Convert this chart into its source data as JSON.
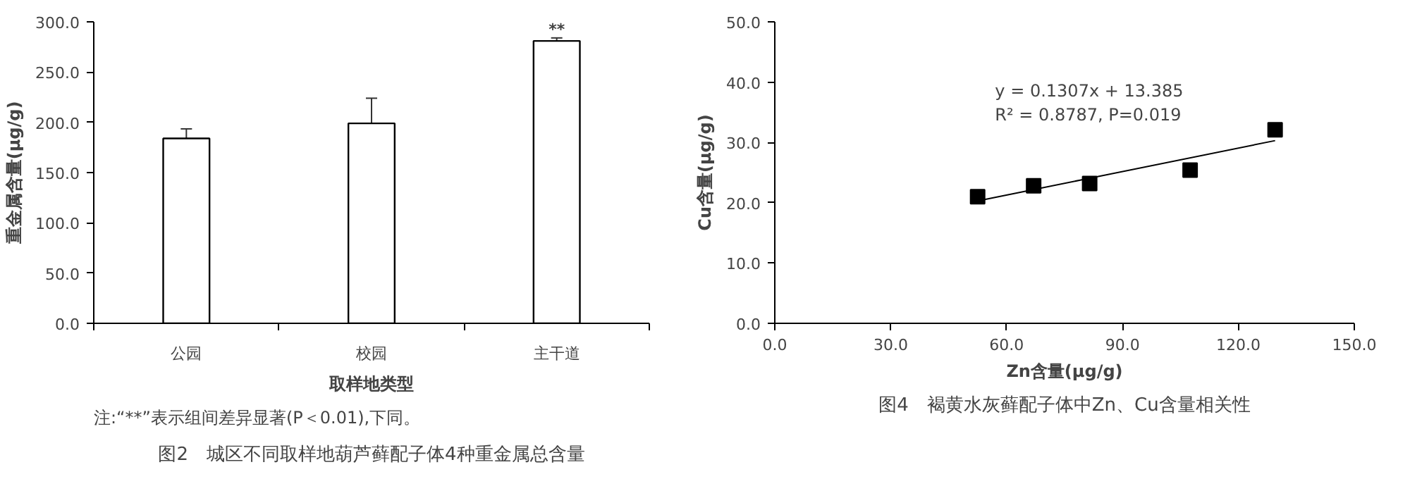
{
  "chart_data": [
    {
      "type": "bar",
      "title": "图2　城区不同取样地葫芦藓配子体4种重金属总含量",
      "xlabel": "取样地类型",
      "ylabel": "重金属含量(μg/g)",
      "categories": [
        "公园",
        "校园",
        "主干道"
      ],
      "series": [
        {
          "color": "#ffffff",
          "values": [
            184,
            199,
            281
          ],
          "errors": [
            9.5,
            25.0,
            3.0
          ]
        }
      ],
      "ylim": [
        0,
        300
      ],
      "yticks": [
        {
          "value": 0,
          "label": "0.0"
        },
        {
          "value": 50,
          "label": "50.0"
        },
        {
          "value": 100,
          "label": "100.0"
        },
        {
          "value": 150,
          "label": "150.0"
        },
        {
          "value": 200,
          "label": "200.0"
        },
        {
          "value": 250,
          "label": "250.0"
        },
        {
          "value": 300,
          "label": "300.0"
        }
      ],
      "annotations": [
        {
          "text": "**",
          "x": "主干道",
          "y": 283
        },
        "注:“**”表示组间差异显著(P＜0.01),下同。"
      ],
      "grid": false
    },
    {
      "type": "scatter",
      "title": "图4　褐黄水灰藓配子体中Zn、Cu含量相关性",
      "xlabel": "Zn含量(μg/g)",
      "ylabel": "Cu含量(μg/g)",
      "series": [
        {
          "type": "scatter",
          "marker": "square",
          "color": "#000000",
          "x": [
            52.5,
            67.0,
            81.5,
            107.5,
            129.5
          ],
          "values": [
            21.0,
            22.8,
            23.2,
            25.4,
            32.1
          ]
        },
        {
          "type": "line",
          "marker": "none",
          "color": "#000000",
          "x": [
            52.5,
            129.5
          ],
          "values": [
            20.3,
            30.3
          ]
        }
      ],
      "xlim": [
        0,
        150
      ],
      "xticks": [
        {
          "value": 0,
          "label": "0.0"
        },
        {
          "value": 30,
          "label": "30.0"
        },
        {
          "value": 60,
          "label": "60.0"
        },
        {
          "value": 90,
          "label": "90.0"
        },
        {
          "value": 120,
          "label": "120.0"
        },
        {
          "value": 150,
          "label": "150.0"
        }
      ],
      "ylim": [
        0,
        50
      ],
      "yticks": [
        {
          "value": 0,
          "label": "0.0"
        },
        {
          "value": 10,
          "label": "10.0"
        },
        {
          "value": 20,
          "label": "20.0"
        },
        {
          "value": 30,
          "label": "30.0"
        },
        {
          "value": 40,
          "label": "40.0"
        },
        {
          "value": 50,
          "label": "50.0"
        }
      ],
      "annotations": [
        "y = 0.1307x + 13.385\nR² = 0.8787, P=0.019"
      ],
      "grid": false
    }
  ]
}
